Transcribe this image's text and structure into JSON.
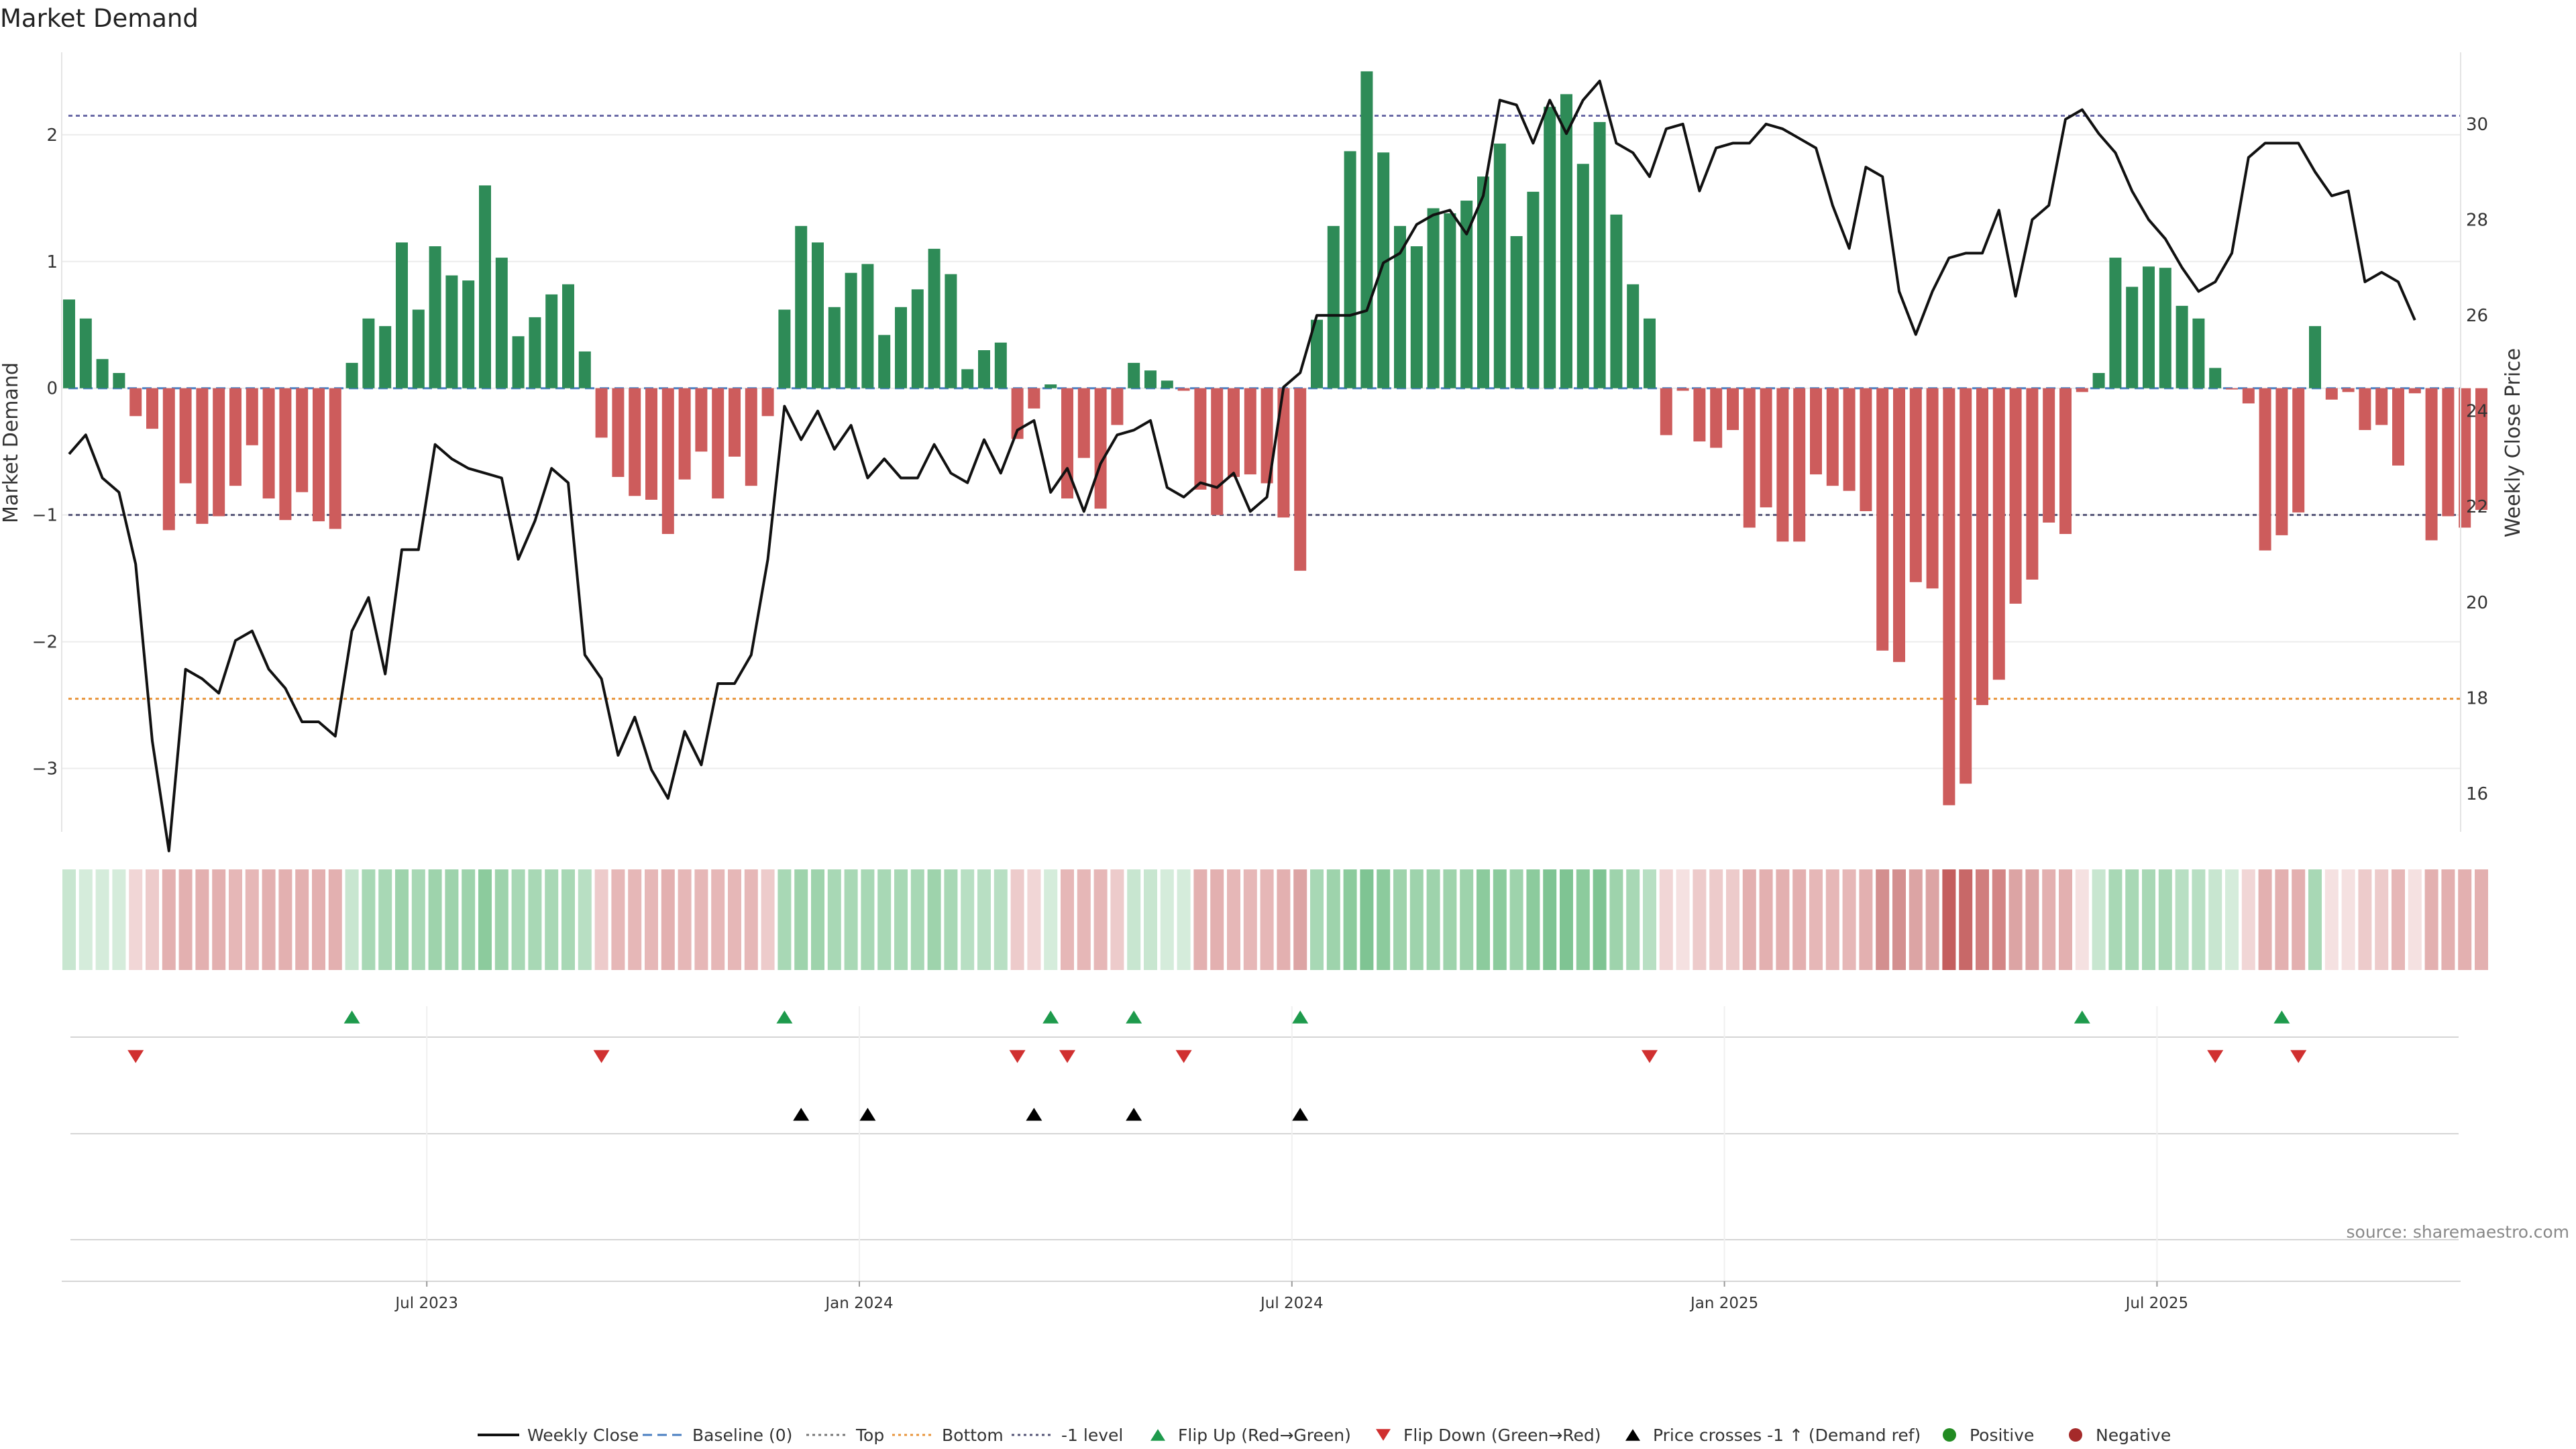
{
  "chart_data": {
    "type": "bar+line",
    "title": "Market Demand",
    "ylabel_left": "Market Demand",
    "ylabel_right": "Weekly Close Price",
    "source": "source: sharemaestro.com",
    "left_axis": {
      "ylim": [
        -3.5,
        2.65
      ],
      "ticks": [
        2,
        1,
        0,
        -1,
        -2,
        -3
      ],
      "tick_labels": [
        "2",
        "1",
        "0",
        "−1",
        "−2",
        "−3"
      ]
    },
    "right_axis": {
      "ylim": [
        15.2,
        31.5
      ],
      "ticks": [
        30,
        28,
        26,
        24,
        22,
        20,
        18,
        16
      ],
      "tick_labels": [
        "30",
        "28",
        "26",
        "24",
        "22",
        "20",
        "18",
        "16"
      ]
    },
    "x_ticks": [
      {
        "week": 21.5,
        "label": "Jul 2023"
      },
      {
        "week": 47.5,
        "label": "Jan 2024"
      },
      {
        "week": 73.5,
        "label": "Jul 2024"
      },
      {
        "week": 99.5,
        "label": "Jan 2025"
      },
      {
        "week": 125.5,
        "label": "Jul 2025"
      }
    ],
    "reference_lines": [
      {
        "name": "Top",
        "value": 2.15,
        "color": "#6a6aa6"
      },
      {
        "name": "Bottom",
        "value": -2.45,
        "color": "#e8943a"
      },
      {
        "name": "-1 level",
        "value": -1.0,
        "color": "#555577"
      },
      {
        "name": "Baseline (0)",
        "value": 0,
        "color": "#4a7fc1"
      }
    ],
    "demand": [
      0.7,
      0.55,
      0.23,
      0.12,
      -0.22,
      -0.32,
      -1.12,
      -0.75,
      -1.07,
      -1.01,
      -0.77,
      -0.45,
      -0.87,
      -1.04,
      -0.82,
      -1.05,
      -1.11,
      0.2,
      0.55,
      0.49,
      1.15,
      0.62,
      1.12,
      0.89,
      0.85,
      1.6,
      1.03,
      0.41,
      0.56,
      0.74,
      0.82,
      0.29,
      -0.39,
      -0.7,
      -0.85,
      -0.88,
      -1.15,
      -0.72,
      -0.5,
      -0.87,
      -0.54,
      -0.77,
      -0.22,
      0.62,
      1.28,
      1.15,
      0.64,
      0.91,
      0.98,
      0.42,
      0.64,
      0.78,
      1.1,
      0.9,
      0.15,
      0.3,
      0.36,
      -0.4,
      -0.16,
      0.03,
      -0.87,
      -0.55,
      -0.95,
      -0.29,
      0.2,
      0.14,
      0.06,
      -0.02,
      -0.8,
      -1.0,
      -0.7,
      -0.68,
      -0.75,
      -1.02,
      -1.44,
      0.54,
      1.28,
      1.87,
      2.5,
      1.86,
      1.28,
      1.12,
      1.42,
      1.38,
      1.48,
      1.67,
      1.93,
      1.2,
      1.55,
      2.22,
      2.32,
      1.77,
      2.1,
      1.37,
      0.82,
      0.55,
      -0.37,
      -0.02,
      -0.42,
      -0.47,
      -0.33,
      -1.1,
      -0.94,
      -1.21,
      -1.21,
      -0.68,
      -0.77,
      -0.81,
      -0.97,
      -2.07,
      -2.16,
      -1.53,
      -1.58,
      -3.29,
      -3.12,
      -2.5,
      -2.3,
      -1.7,
      -1.51,
      -1.06,
      -1.15,
      -0.03,
      0.12,
      1.03,
      0.8,
      0.96,
      0.95,
      0.65,
      0.55,
      0.16,
      -0.01,
      -0.12,
      -1.28,
      -1.16,
      -0.98,
      0.49,
      -0.09,
      -0.03,
      -0.33,
      -0.29,
      -0.61,
      -0.04,
      -1.2,
      -1.01,
      -1.1,
      -0.96
    ],
    "price": [
      23.1,
      23.5,
      22.6,
      22.3,
      20.8,
      17.1,
      14.8,
      18.6,
      18.4,
      18.1,
      19.2,
      19.4,
      18.6,
      18.2,
      17.5,
      17.5,
      17.2,
      19.4,
      20.1,
      18.5,
      21.1,
      21.1,
      23.3,
      23.0,
      22.8,
      22.7,
      22.6,
      20.9,
      21.7,
      22.8,
      22.5,
      18.9,
      18.4,
      16.8,
      17.6,
      16.5,
      15.9,
      17.3,
      16.6,
      18.3,
      18.3,
      18.9,
      20.9,
      24.1,
      23.4,
      24.0,
      23.2,
      23.7,
      22.6,
      23.0,
      22.6,
      22.6,
      23.3,
      22.7,
      22.5,
      23.4,
      22.7,
      23.6,
      23.8,
      22.3,
      22.8,
      21.9,
      22.9,
      23.5,
      23.6,
      23.8,
      22.4,
      22.2,
      22.5,
      22.4,
      22.7,
      21.9,
      22.2,
      24.5,
      24.8,
      26.0,
      26.0,
      26.0,
      26.1,
      27.1,
      27.3,
      27.9,
      28.1,
      28.2,
      27.7,
      28.5,
      30.5,
      30.4,
      29.6,
      30.5,
      29.8,
      30.5,
      30.9,
      29.6,
      29.4,
      28.9,
      29.9,
      30.0,
      28.6,
      29.5,
      29.6,
      29.6,
      30.0,
      29.9,
      29.7,
      29.5,
      28.3,
      27.4,
      29.1,
      28.9,
      26.5,
      25.6,
      26.5,
      27.2,
      27.3,
      27.3,
      28.2,
      26.4,
      28.0,
      28.3,
      30.1,
      30.3,
      29.8,
      29.4,
      28.6,
      28.0,
      27.6,
      27.0,
      26.5,
      26.7,
      27.3,
      29.3,
      29.6,
      29.6,
      29.6,
      29.0,
      28.5,
      28.6,
      26.7,
      26.9,
      26.7,
      25.9
    ],
    "heat_colors": [
      "#c8e6d0",
      "#d5ecdb",
      "#d5ecdb",
      "#d5ecdb",
      "#f1d6d6",
      "#edcbcb",
      "#e3b0b0",
      "#e3b0b0",
      "#e3b0b0",
      "#e3b0b0",
      "#e6b7b7",
      "#e6b7b7",
      "#e3b0b0",
      "#e3b0b0",
      "#e3b0b0",
      "#e3b0b0",
      "#e3b0b0",
      "#c8e6d0",
      "#a8d8b5",
      "#a8d8b5",
      "#9ed3ac",
      "#a8d8b5",
      "#9ed3ac",
      "#9ed3ac",
      "#9ed3ac",
      "#8ccb9d",
      "#9ed3ac",
      "#a8d8b5",
      "#a8d8b5",
      "#a8d8b5",
      "#a8d8b5",
      "#b8dfc3",
      "#edcbcb",
      "#e6b7b7",
      "#e6b7b7",
      "#e6b7b7",
      "#e3b0b0",
      "#e6b7b7",
      "#e6b7b7",
      "#e6b7b7",
      "#e6b7b7",
      "#e6b7b7",
      "#edcbcb",
      "#a8d8b5",
      "#9ed3ac",
      "#9ed3ac",
      "#a8d8b5",
      "#a8d8b5",
      "#a8d8b5",
      "#a8d8b5",
      "#a8d8b5",
      "#a8d8b5",
      "#9ed3ac",
      "#a8d8b5",
      "#b8dfc3",
      "#b8dfc3",
      "#b8dfc3",
      "#edcbcb",
      "#f1d6d6",
      "#d5ecdb",
      "#e6b7b7",
      "#e6b7b7",
      "#e6b7b7",
      "#edcbcb",
      "#c8e6d0",
      "#c8e6d0",
      "#d5ecdb",
      "#d5ecdb",
      "#e3b0b0",
      "#e3b0b0",
      "#e6b7b7",
      "#e6b7b7",
      "#e6b7b7",
      "#e3b0b0",
      "#dca4a4",
      "#a8d8b5",
      "#9ed3ac",
      "#8ccb9d",
      "#7fc493",
      "#8ccb9d",
      "#9ed3ac",
      "#9ed3ac",
      "#9ed3ac",
      "#9ed3ac",
      "#9ed3ac",
      "#8ccb9d",
      "#8ccb9d",
      "#9ed3ac",
      "#8ccb9d",
      "#7fc493",
      "#7fc493",
      "#8ccb9d",
      "#7fc493",
      "#9ed3ac",
      "#a8d8b5",
      "#b8dfc3",
      "#f1d6d6",
      "#f5e1e1",
      "#edcbcb",
      "#edcbcb",
      "#edcbcb",
      "#e3b0b0",
      "#e3b0b0",
      "#e3b0b0",
      "#e3b0b0",
      "#e6b7b7",
      "#e6b7b7",
      "#e6b7b7",
      "#e3b0b0",
      "#d38f8f",
      "#d38f8f",
      "#dca4a4",
      "#dca4a4",
      "#c45e5e",
      "#c86868",
      "#d07e7e",
      "#d38686",
      "#dca4a4",
      "#dca4a4",
      "#e3b0b0",
      "#e3b0b0",
      "#f5e1e1",
      "#c8e6d0",
      "#a8d8b5",
      "#a8d8b5",
      "#a8d8b5",
      "#a8d8b5",
      "#b8dfc3",
      "#b8dfc3",
      "#c8e6d0",
      "#d5ecdb",
      "#f1d6d6",
      "#e3b0b0",
      "#e3b0b0",
      "#e3b0b0",
      "#a8d8b5",
      "#f5e1e1",
      "#f5e1e1",
      "#edcbcb",
      "#edcbcb",
      "#e6b7b7",
      "#f5e1e1",
      "#e3b0b0",
      "#e3b0b0",
      "#e3b0b0",
      "#e3b0b0"
    ],
    "flip_up_weeks": [
      17,
      43,
      59,
      64,
      74,
      121,
      133
    ],
    "flip_down_weeks": [
      4,
      32,
      57,
      60,
      67,
      95,
      129,
      134
    ],
    "price_cross_weeks": [
      44,
      48,
      58,
      64,
      74
    ],
    "colors": {
      "positive": "#2e8b57",
      "negative": "#cd5c5c",
      "line": "#111111",
      "flip_up": "#1e9a4c",
      "flip_down": "#d03030",
      "cross": "#000000",
      "legend_positive": "#228b22",
      "legend_negative": "#a52a2a"
    },
    "legend": [
      {
        "kind": "line",
        "label": "Weekly Close"
      },
      {
        "kind": "dash",
        "label": "Baseline (0)"
      },
      {
        "kind": "dot-gray",
        "label": "Top"
      },
      {
        "kind": "dot-orange",
        "label": "Bottom"
      },
      {
        "kind": "dot-purple",
        "label": "-1 level"
      },
      {
        "kind": "tri-up-green",
        "label": "Flip Up (Red→Green)"
      },
      {
        "kind": "tri-down-red",
        "label": "Flip Down (Green→Red)"
      },
      {
        "kind": "tri-up-black",
        "label": "Price crosses -1 ↑ (Demand ref)"
      },
      {
        "kind": "dot-green",
        "label": "Positive"
      },
      {
        "kind": "dot-red",
        "label": "Negative"
      }
    ]
  }
}
